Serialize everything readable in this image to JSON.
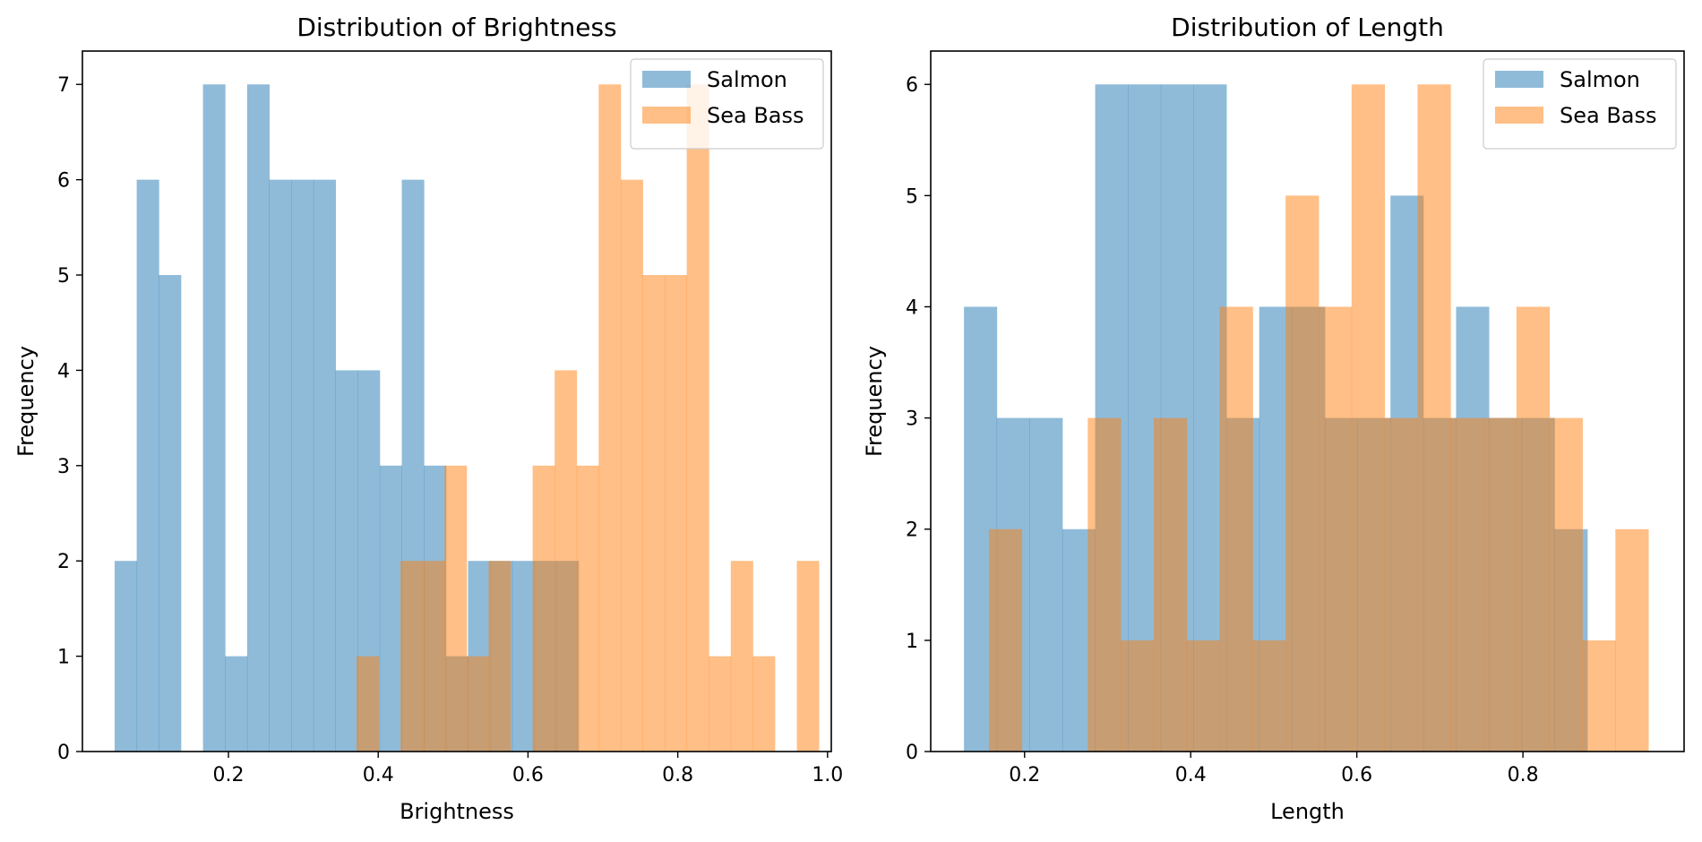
{
  "colors": {
    "salmon": "#1f77b4",
    "sea_bass": "#ff7f0e",
    "axes": "#000000",
    "legend_border": "#cccccc"
  },
  "chart_data": [
    {
      "type": "bar",
      "subtype": "histogram-overlaid",
      "title": "Distribution of Brightness",
      "xlabel": "Brightness",
      "ylabel": "Frequency",
      "xlim": [
        0.005,
        1.005
      ],
      "ylim": [
        0,
        7.35
      ],
      "xticks": [
        0.2,
        0.4,
        0.6,
        0.8,
        1.0
      ],
      "xtick_labels": [
        "0.2",
        "0.4",
        "0.6",
        "0.8",
        "1.0"
      ],
      "yticks": [
        0,
        1,
        2,
        3,
        4,
        5,
        6,
        7
      ],
      "ytick_labels": [
        "0",
        "1",
        "2",
        "3",
        "4",
        "5",
        "6",
        "7"
      ],
      "bar_opacity": 0.5,
      "legend_position": "top-right",
      "series": [
        {
          "name": "Salmon",
          "color": "#1f77b4",
          "bin_start": 0.048,
          "bin_width": 0.0295,
          "counts": [
            2,
            6,
            5,
            0,
            7,
            1,
            7,
            6,
            6,
            6,
            4,
            4,
            3,
            6,
            3,
            1,
            2,
            2,
            2,
            2,
            2
          ]
        },
        {
          "name": "Sea Bass",
          "color": "#ff7f0e",
          "bin_start": 0.371,
          "bin_width": 0.0294,
          "counts": [
            1,
            0,
            2,
            2,
            3,
            1,
            2,
            0,
            3,
            4,
            3,
            7,
            6,
            5,
            5,
            7,
            1,
            2,
            1,
            0,
            2
          ]
        }
      ]
    },
    {
      "type": "bar",
      "subtype": "histogram-overlaid",
      "title": "Distribution of Length",
      "xlabel": "Length",
      "ylabel": "Frequency",
      "xlim": [
        0.087,
        0.994
      ],
      "ylim": [
        0,
        6.3
      ],
      "xticks": [
        0.2,
        0.4,
        0.6,
        0.8
      ],
      "xtick_labels": [
        "0.2",
        "0.4",
        "0.6",
        "0.8"
      ],
      "yticks": [
        0,
        1,
        2,
        3,
        4,
        5,
        6
      ],
      "ytick_labels": [
        "0",
        "1",
        "2",
        "3",
        "4",
        "5",
        "6"
      ],
      "bar_opacity": 0.5,
      "legend_position": "top-right",
      "series": [
        {
          "name": "Salmon",
          "color": "#1f77b4",
          "bin_start": 0.127,
          "bin_width": 0.0395,
          "counts": [
            4,
            3,
            3,
            2,
            6,
            6,
            6,
            6,
            3,
            4,
            4,
            3,
            3,
            5,
            3,
            4,
            3,
            3,
            2
          ]
        },
        {
          "name": "Sea Bass",
          "color": "#ff7f0e",
          "bin_start": 0.157,
          "bin_width": 0.0397,
          "counts": [
            2,
            0,
            0,
            3,
            1,
            3,
            1,
            4,
            1,
            5,
            4,
            6,
            3,
            6,
            3,
            3,
            4,
            3,
            1,
            2
          ]
        }
      ]
    }
  ]
}
